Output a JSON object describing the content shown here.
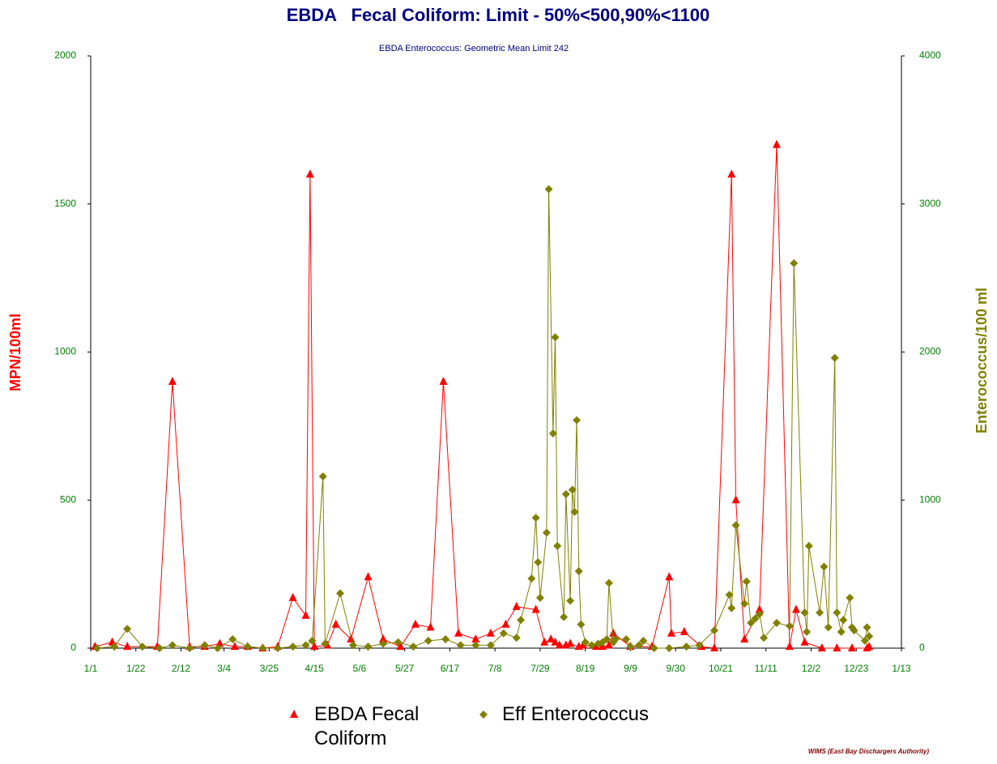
{
  "chart_data": {
    "type": "line",
    "title": "EBDA   Fecal Coliform: Limit - 50%<500,90%<1100",
    "subtitle": "EBDA Enterococcus: Geometric Mean Limit 242",
    "y_label": "MPN/100ml",
    "y2_label": "Enterococcus/100 ml",
    "footer": "WIMS (East Bay Dischargers Authority)",
    "xlim": [
      0,
      377
    ],
    "xticks": [
      {
        "value": 0,
        "label": "1/1"
      },
      {
        "value": 21,
        "label": "1/22"
      },
      {
        "value": 42,
        "label": "2/12"
      },
      {
        "value": 62,
        "label": "3/4"
      },
      {
        "value": 83,
        "label": "3/25"
      },
      {
        "value": 104,
        "label": "4/15"
      },
      {
        "value": 125,
        "label": "5/6"
      },
      {
        "value": 146,
        "label": "5/27"
      },
      {
        "value": 167,
        "label": "6/17"
      },
      {
        "value": 188,
        "label": "7/8"
      },
      {
        "value": 209,
        "label": "7/29"
      },
      {
        "value": 230,
        "label": "8/19"
      },
      {
        "value": 251,
        "label": "9/9"
      },
      {
        "value": 272,
        "label": "9/30"
      },
      {
        "value": 293,
        "label": "10/21"
      },
      {
        "value": 314,
        "label": "11/11"
      },
      {
        "value": 335,
        "label": "12/2"
      },
      {
        "value": 356,
        "label": "12/23"
      },
      {
        "value": 377,
        "label": "1/13"
      }
    ],
    "ylim": [
      0,
      2000
    ],
    "yticks": [
      0,
      500,
      1000,
      1500,
      2000
    ],
    "y2lim": [
      0,
      4000
    ],
    "y2ticks": [
      0,
      1000,
      2000,
      3000,
      4000
    ],
    "legend": "bottom",
    "series": [
      {
        "name": "EBDA Fecal Coliform",
        "color": "#ff0000",
        "marker": "triangle",
        "x": [
          2,
          10,
          17,
          31,
          38,
          46,
          53,
          60,
          67,
          73,
          80,
          87,
          94,
          100,
          102,
          104,
          110,
          114,
          121,
          129,
          136,
          144,
          151,
          158,
          164,
          171,
          179,
          186,
          193,
          198,
          207,
          211,
          214,
          216,
          218,
          221,
          223,
          227,
          229,
          235,
          238,
          241,
          243,
          251,
          261,
          269,
          270,
          276,
          284,
          290,
          298,
          300,
          304,
          311,
          319,
          325,
          328,
          332,
          340,
          347,
          354,
          361,
          362
        ],
        "values": [
          5,
          20,
          5,
          5,
          900,
          5,
          5,
          15,
          5,
          5,
          0,
          5,
          170,
          110,
          1600,
          5,
          10,
          80,
          30,
          240,
          30,
          5,
          80,
          70,
          900,
          50,
          30,
          50,
          80,
          140,
          130,
          20,
          30,
          20,
          10,
          10,
          15,
          5,
          10,
          5,
          5,
          10,
          50,
          5,
          5,
          240,
          50,
          55,
          5,
          0,
          1600,
          500,
          30,
          130,
          1700,
          5,
          130,
          20,
          0,
          0,
          0,
          0,
          5
        ]
      },
      {
        "name": "Eff Enterococcus",
        "color": "#808000",
        "marker": "diamond",
        "axis": "y2",
        "x": [
          3,
          11,
          17,
          24,
          32,
          38,
          46,
          53,
          59,
          66,
          73,
          80,
          87,
          94,
          100,
          103,
          108,
          109,
          116,
          122,
          129,
          136,
          143,
          150,
          157,
          165,
          172,
          179,
          186,
          192,
          198,
          200,
          205,
          207,
          208,
          209,
          212,
          213,
          215,
          216,
          217,
          220,
          221,
          223,
          224,
          225,
          226,
          227,
          228,
          230,
          233,
          236,
          238,
          240,
          241,
          243,
          244,
          249,
          251,
          255,
          257,
          262,
          269,
          277,
          283,
          290,
          297,
          298,
          300,
          304,
          305,
          307,
          309,
          311,
          313,
          319,
          325,
          327,
          332,
          333,
          334,
          339,
          341,
          343,
          346,
          347,
          349,
          350,
          353,
          354,
          355,
          360,
          361,
          362
        ],
        "values": [
          0,
          10,
          130,
          10,
          0,
          20,
          0,
          20,
          0,
          60,
          10,
          0,
          0,
          10,
          20,
          50,
          1160,
          30,
          370,
          20,
          10,
          30,
          40,
          10,
          50,
          60,
          20,
          20,
          20,
          100,
          70,
          190,
          470,
          880,
          580,
          340,
          780,
          3100,
          1450,
          2100,
          690,
          210,
          1040,
          320,
          1070,
          920,
          1540,
          520,
          160,
          40,
          20,
          30,
          40,
          60,
          440,
          40,
          60,
          60,
          10,
          20,
          50,
          0,
          0,
          10,
          20,
          120,
          360,
          270,
          830,
          300,
          450,
          170,
          200,
          230,
          70,
          170,
          150,
          2600,
          240,
          110,
          690,
          240,
          550,
          140,
          1960,
          240,
          110,
          190,
          340,
          140,
          120,
          50,
          140,
          80
        ]
      }
    ]
  }
}
